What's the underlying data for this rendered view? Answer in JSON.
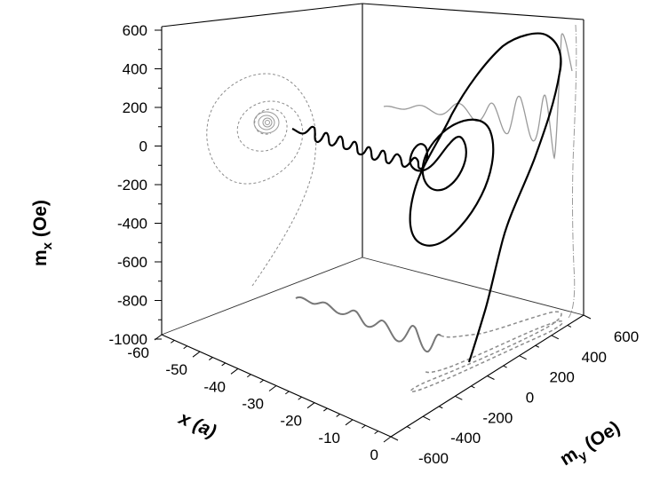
{
  "chart_data": {
    "type": "line",
    "subtype": "3d-trajectory-with-projections",
    "title": "",
    "axes": {
      "vertical": {
        "label_main": "m",
        "label_sub": "x",
        "label_unit": " (Oe)",
        "range": [
          -1000,
          600
        ],
        "ticks": [
          600,
          400,
          200,
          0,
          -200,
          -400,
          -600,
          -800,
          -1000
        ],
        "tick_labels": [
          "600",
          "400",
          "200",
          "0",
          "-200",
          "-400",
          "-600",
          "-800",
          "-1000"
        ]
      },
      "depth_left": {
        "label_main": "x (a)",
        "range": [
          -60,
          0
        ],
        "ticks": [
          -60,
          -50,
          -40,
          -30,
          -20,
          -10,
          0
        ],
        "tick_labels": [
          "-60",
          "-50",
          "-40",
          "-30",
          "-20",
          "-10",
          "0"
        ]
      },
      "depth_right": {
        "label_main": "m",
        "label_sub": "y",
        "label_unit": " (Oe)",
        "range": [
          -600,
          600
        ],
        "ticks": [
          -600,
          -400,
          -200,
          0,
          200,
          400,
          600
        ],
        "tick_labels": [
          "-600",
          "-400",
          "-200",
          "0",
          "200",
          "400",
          "600"
        ]
      }
    },
    "series": [
      {
        "role": "trajectory",
        "color": "#000000",
        "style": "solid"
      },
      {
        "role": "projection-mx-my",
        "color": "#8c8c8c",
        "style": "dashed"
      },
      {
        "role": "projection-mx-x",
        "color": "#9a9a9a",
        "style": "solid"
      },
      {
        "role": "projection-my-x",
        "color": "#777777",
        "style": "solid"
      }
    ],
    "grid": false,
    "legend": "none"
  }
}
